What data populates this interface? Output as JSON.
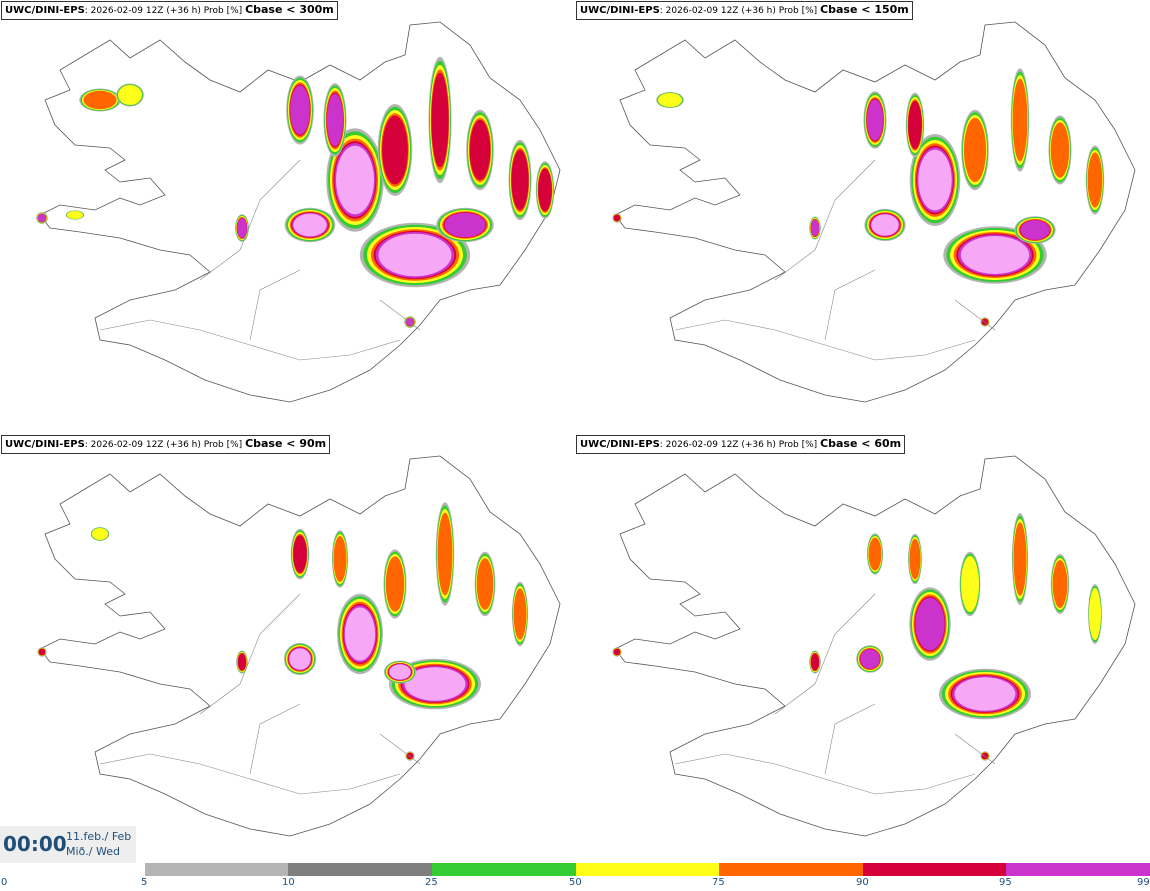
{
  "panels": [
    {
      "model": "UWC/DINI-EPS",
      "meta": "2026-02-09 12Z (+36 h) Prob [%]",
      "cbase": "Cbase < 300m"
    },
    {
      "model": "UWC/DINI-EPS",
      "meta": "2026-02-09 12Z (+36 h) Prob [%]",
      "cbase": "Cbase < 150m"
    },
    {
      "model": "UWC/DINI-EPS",
      "meta": "2026-02-09 12Z (+36 h) Prob [%]",
      "cbase": "Cbase < 90m"
    },
    {
      "model": "UWC/DINI-EPS",
      "meta": "2026-02-09 12Z (+36 h) Prob [%]",
      "cbase": "Cbase < 60m"
    }
  ],
  "valid_time": {
    "time": "00:00",
    "date": "11.feb./ Feb",
    "weekday": "Mið./ Wed"
  },
  "colorbar": {
    "ticks": [
      "0",
      "5",
      "10",
      "25",
      "50",
      "75",
      "90",
      "95",
      "99"
    ],
    "colors": [
      "#b4b4b4",
      "#7f7f7f",
      "#33cc33",
      "#ffff1a",
      "#ff6600",
      "#d6003a",
      "#cc33cc",
      "#f6a8f6"
    ]
  }
}
